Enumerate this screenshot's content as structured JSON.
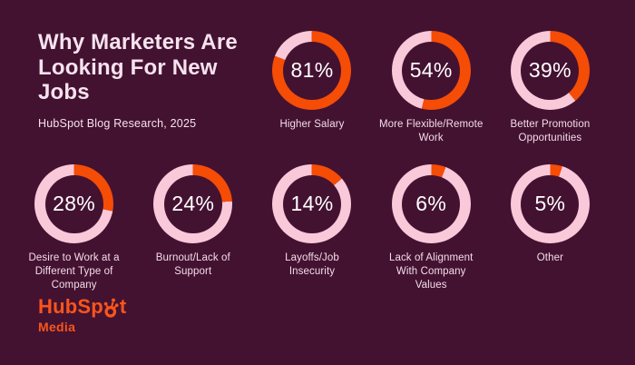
{
  "colors": {
    "background": "#441231",
    "arc_filled": "#f54c06",
    "arc_track": "#f9c9da",
    "title_text": "#f5e3ee",
    "label_text": "#f2dde9",
    "percent_text": "#ffffff",
    "logo_orange": "#f8551c"
  },
  "chart_data": {
    "type": "donut",
    "title": "Why Marketers Are\nLooking For New\nJobs",
    "source": "HubSpot Blog Research, 2025",
    "unit": "%",
    "arc_start": "top",
    "arc_direction": "clockwise",
    "legend_position": "none",
    "categories": [
      "Higher Salary",
      "More Flexible/Remote\nWork",
      "Better Promotion\nOpportunities",
      "Desire to Work at a\nDifferent Type of\nCompany",
      "Burnout/Lack of\nSupport",
      "Layoffs/Job\nInsecurity",
      "Lack of Alignment\nWith Company\nValues",
      "Other"
    ],
    "values": [
      81,
      54,
      39,
      28,
      24,
      14,
      6,
      5
    ]
  },
  "logo": {
    "brand": "HubSpot",
    "wordmark_pre": "HubSp",
    "wordmark_post": "t",
    "sub_label": "Media"
  }
}
